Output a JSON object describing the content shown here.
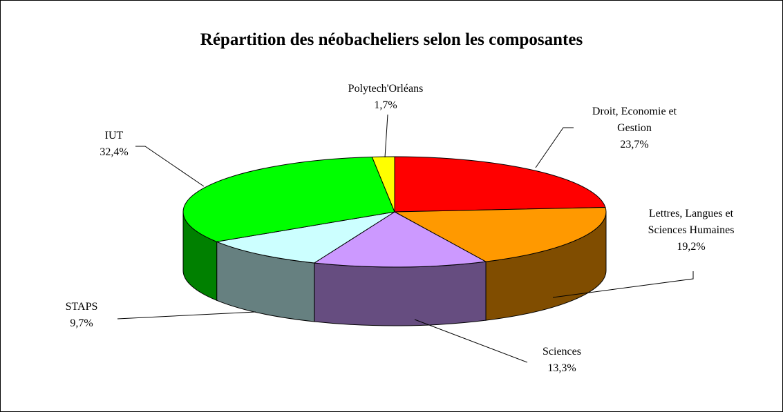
{
  "chart_data": {
    "type": "pie",
    "title": "Répartition des néobacheliers selon les composantes",
    "categories": [
      "Droit, Economie et Gestion",
      "Lettres, Langues et Sciences Humaines",
      "Sciences",
      "STAPS",
      "IUT",
      "Polytech'Orléans"
    ],
    "values": [
      23.7,
      19.2,
      13.3,
      9.7,
      32.4,
      1.7
    ],
    "value_labels": [
      "23,7%",
      "19,2%",
      "13,3%",
      "9,7%",
      "32,4%",
      "1,7%"
    ],
    "colors": [
      "#ff0000",
      "#ff9900",
      "#cc99ff",
      "#ccffff",
      "#00ff00",
      "#ffff00"
    ]
  }
}
